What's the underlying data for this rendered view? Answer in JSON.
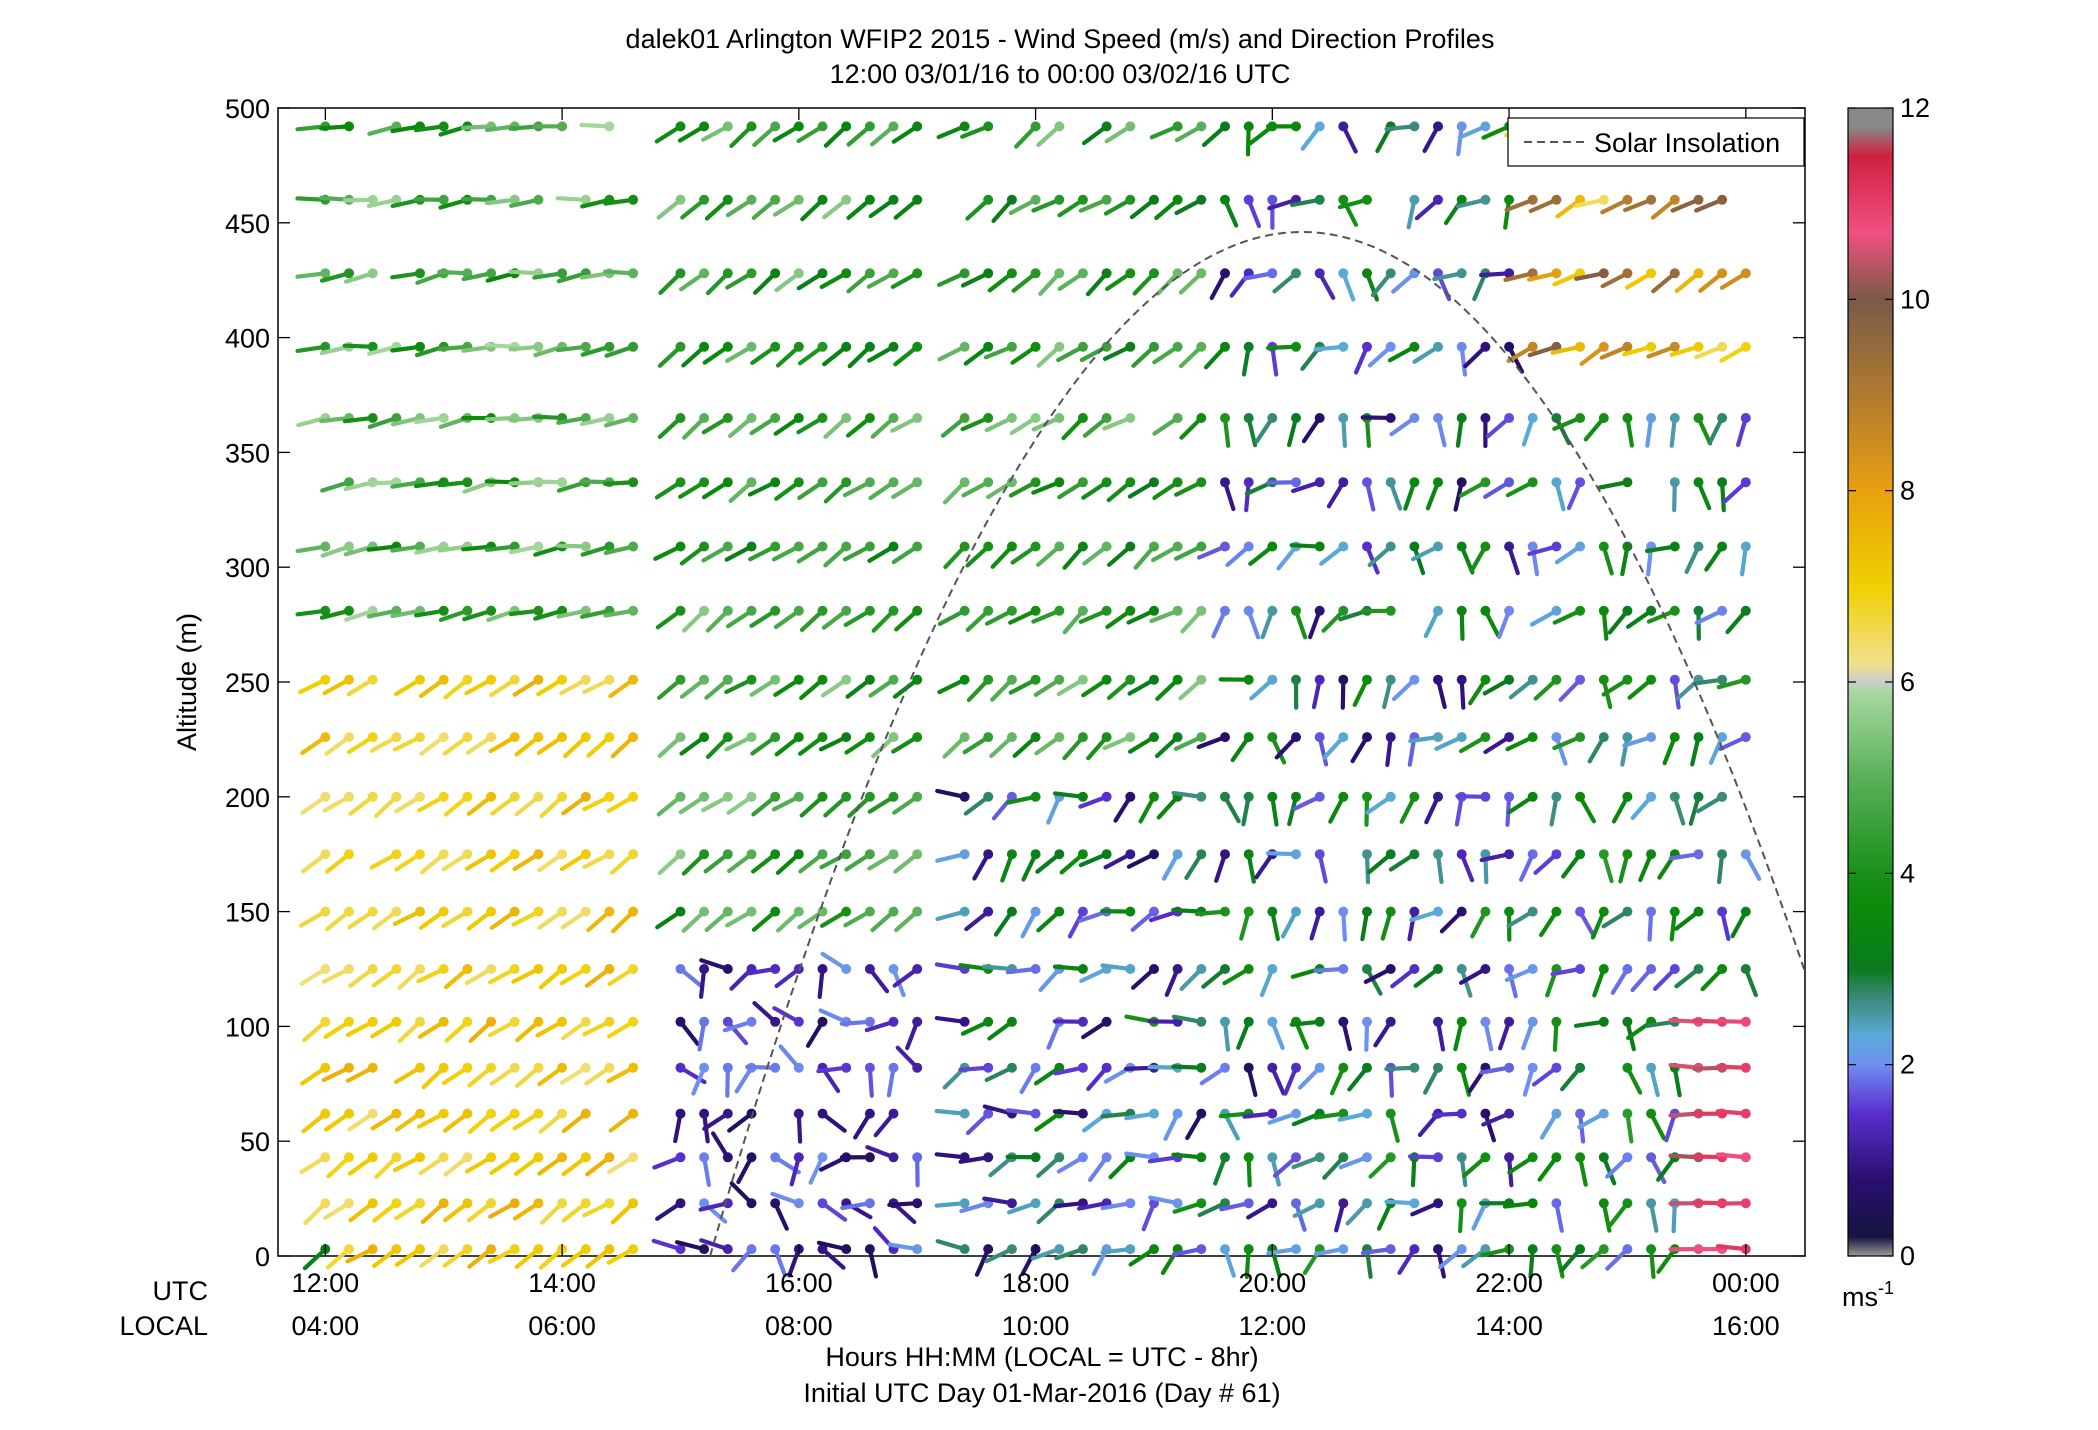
{
  "chart_data": {
    "type": "wind-barb-profile",
    "title": "dalek01 Arlington WFIP2 2015 - Wind Speed (m/s) and Direction Profiles",
    "subtitle": "12:00 03/01/16 to 00:00 03/02/16  UTC",
    "ylabel": "Altitude (m)",
    "xlabel": "Hours HH:MM  (LOCAL = UTC - 8hr)",
    "footer": "Initial UTC Day 01-Mar-2016 (Day # 61)",
    "row_label_utc": "UTC",
    "row_label_local": "LOCAL",
    "ylim": [
      0,
      500
    ],
    "xlim_hours": [
      11.6,
      24.5
    ],
    "yticks": [
      "0",
      "50",
      "100",
      "150",
      "200",
      "250",
      "300",
      "350",
      "400",
      "450",
      "500"
    ],
    "xticks_utc": [
      "12:00",
      "14:00",
      "16:00",
      "18:00",
      "20:00",
      "22:00",
      "00:00"
    ],
    "xticks_local": [
      "04:00",
      "06:00",
      "08:00",
      "10:00",
      "12:00",
      "14:00",
      "16:00"
    ],
    "legend_label": "Solar Insolation",
    "colorbar_unit": "ms",
    "colorbar_unit_exp": "-1",
    "colorbar_ticks": [
      "0",
      "2",
      "4",
      "6",
      "8",
      "10",
      "12"
    ],
    "colorbar_range": [
      0,
      12
    ],
    "colorbar_stops": [
      {
        "v": 0.0,
        "c": "#999999"
      },
      {
        "v": 0.2,
        "c": "#151540"
      },
      {
        "v": 0.8,
        "c": "#2a0e70"
      },
      {
        "v": 1.5,
        "c": "#5a2fd0"
      },
      {
        "v": 2.0,
        "c": "#6f8ff0"
      },
      {
        "v": 2.3,
        "c": "#5aaad8"
      },
      {
        "v": 2.7,
        "c": "#3a8a78"
      },
      {
        "v": 3.0,
        "c": "#0a7a20"
      },
      {
        "v": 3.6,
        "c": "#0a8a0a"
      },
      {
        "v": 4.0,
        "c": "#1a901a"
      },
      {
        "v": 5.0,
        "c": "#5ab05a"
      },
      {
        "v": 5.9,
        "c": "#a8d8a0"
      },
      {
        "v": 6.0,
        "c": "#cccccc"
      },
      {
        "v": 6.2,
        "c": "#f0e08a"
      },
      {
        "v": 7.0,
        "c": "#f0d000"
      },
      {
        "v": 8.0,
        "c": "#e8a010"
      },
      {
        "v": 9.0,
        "c": "#b07a30"
      },
      {
        "v": 10.0,
        "c": "#7a5a48"
      },
      {
        "v": 10.7,
        "c": "#f05080"
      },
      {
        "v": 11.5,
        "c": "#d02040"
      },
      {
        "v": 11.8,
        "c": "#888888"
      },
      {
        "v": 12.0,
        "c": "#888888"
      }
    ],
    "heights_m": [
      3,
      23,
      43,
      62,
      82,
      102,
      125,
      150,
      175,
      200,
      226,
      251,
      281,
      309,
      337,
      365,
      396,
      428,
      460,
      492
    ],
    "time_start_hour": 12.0,
    "time_step_hours": 0.2,
    "time_count": 61,
    "solar_insolation_curve": {
      "rise_hour": 15.25,
      "peak_hour": 20.25,
      "peak_altitude_m": 446,
      "set_hour": 24.5,
      "set_altitude_m": 122
    },
    "wind_field_summary": [
      {
        "period_utc": "12:00-15:00",
        "heights_m": "0-250",
        "speed_ms": "6-8",
        "direction": "south-westerly (arrows to upper-right)"
      },
      {
        "period_utc": "12:00-15:00",
        "heights_m": "280-500",
        "speed_ms": "3-6",
        "direction": "westerly to west-south-westerly"
      },
      {
        "period_utc": "16:00-17:00",
        "heights_m": "0-120",
        "speed_ms": "0.5-2",
        "direction": "variable, light"
      },
      {
        "period_utc": "17:20-19:30",
        "heights_m": "0-200",
        "speed_ms": "0.5-4",
        "direction": "variable, westerly"
      },
      {
        "period_utc": "19:00-22:00",
        "heights_m": "100-450",
        "speed_ms": "1-4",
        "direction": "southerly / variable"
      },
      {
        "period_utc": "22:00-00:00",
        "heights_m": "400-500",
        "speed_ms": "6-10",
        "direction": "south-westerly"
      },
      {
        "period_utc": "23:30-00:00",
        "heights_m": "0-100",
        "speed_ms": "10-11",
        "direction": "westerly"
      }
    ],
    "data_gaps_utc": [
      {
        "start": "14:45",
        "end": "14:50"
      },
      {
        "start": "17:05",
        "end": "17:20"
      }
    ]
  }
}
